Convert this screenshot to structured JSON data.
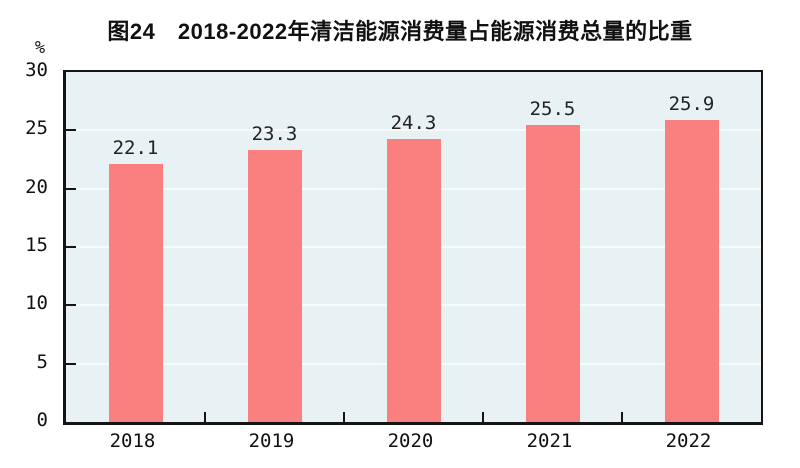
{
  "title": "图24　2018-2022年清洁能源消费量占能源消费总量的比重",
  "chart_data": {
    "type": "bar",
    "title": "图24　2018-2022年清洁能源消费量占能源消费总量的比重",
    "categories": [
      "2018",
      "2019",
      "2020",
      "2021",
      "2022"
    ],
    "values": [
      22.1,
      23.3,
      24.3,
      25.5,
      25.9
    ],
    "data_labels": [
      "22.1",
      "23.3",
      "24.3",
      "25.5",
      "25.9"
    ],
    "xlabel": "",
    "ylabel": "%",
    "ylim": [
      0,
      30
    ],
    "yticks": [
      0,
      5,
      10,
      15,
      20,
      25,
      30
    ],
    "grid": "horizontal",
    "legend": "none",
    "bar_color": "#FA8080",
    "plot_background": "#E8F1F4",
    "grid_color": "#F7FBFC",
    "axis_color": "#141414"
  }
}
